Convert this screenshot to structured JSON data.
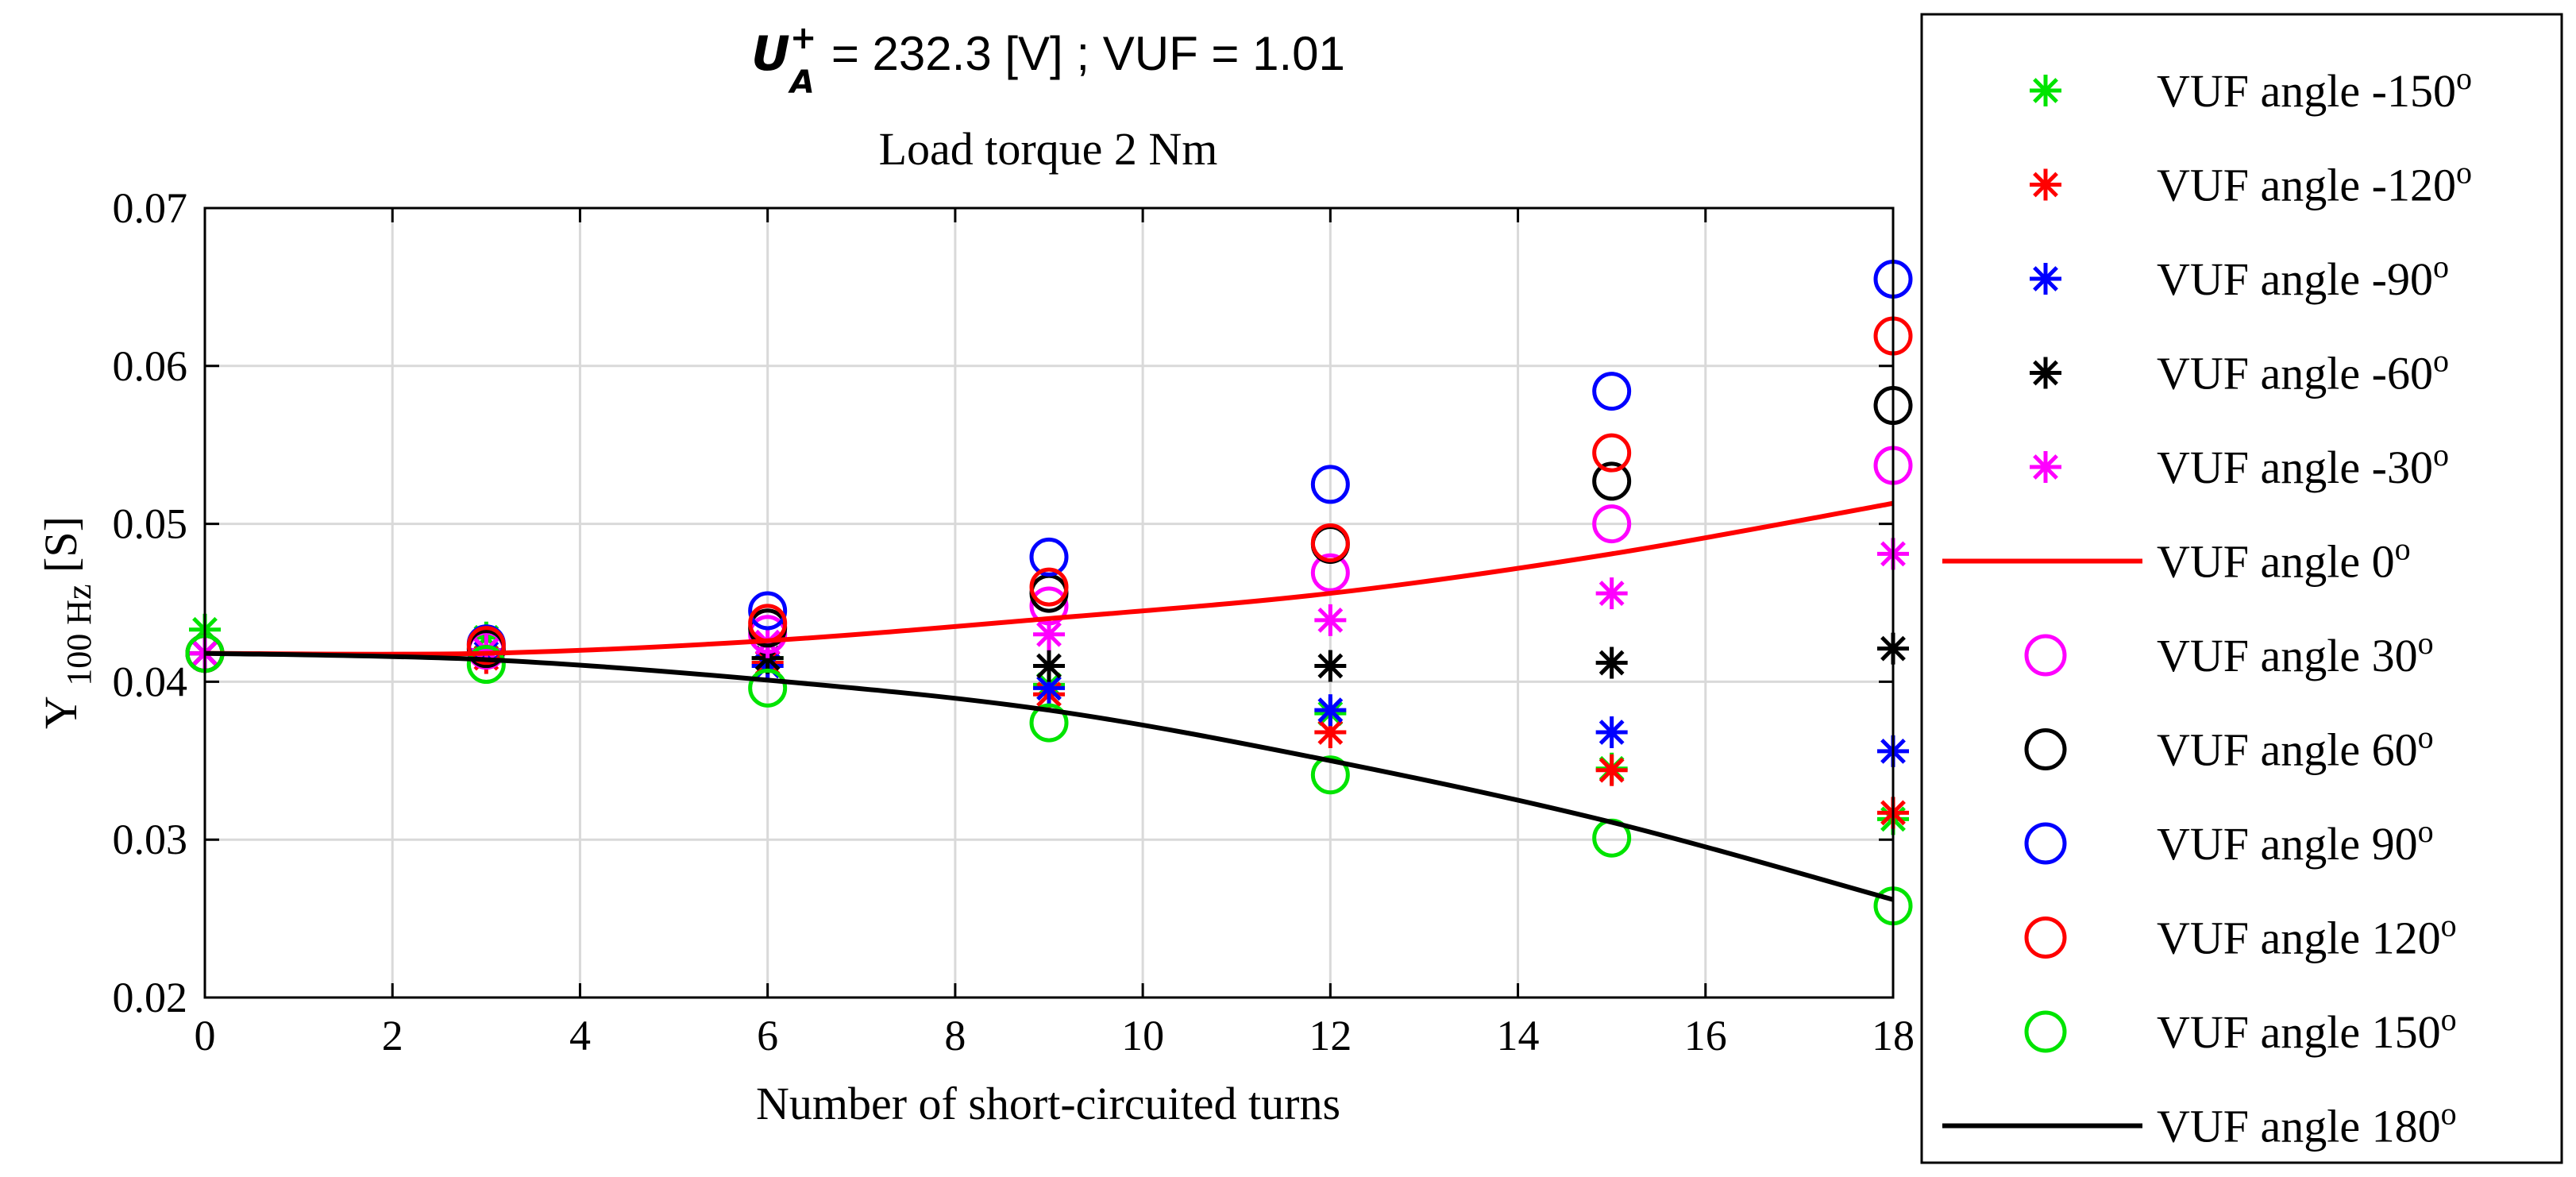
{
  "chart_data": {
    "type": "scatter",
    "title": {
      "symbol": "U",
      "symbol_superscript": "+",
      "symbol_subscript": "A",
      "line1_rest": "= 232.3 [V] ;  VUF = 1.01",
      "line2": "Load torque 2 Nm"
    },
    "xlabel": "Number of short-circuited turns",
    "ylabel": {
      "main": "Y",
      "subscript": "100 Hz",
      "unit": "[S]"
    },
    "xlim": [
      0,
      18
    ],
    "ylim": [
      0.02,
      0.07
    ],
    "xticks": [
      0,
      2,
      4,
      6,
      8,
      10,
      12,
      14,
      16,
      18
    ],
    "yticks": [
      0.02,
      0.03,
      0.04,
      0.05,
      0.06,
      0.07
    ],
    "ytick_labels": [
      "0.02",
      "0.03",
      "0.04",
      "0.05",
      "0.06",
      "0.07"
    ],
    "grid": true,
    "legend_position": "outside-right",
    "x": [
      0,
      3,
      6,
      9,
      12,
      15,
      18
    ],
    "series": [
      {
        "name": "VUF angle -150",
        "label_text": "VUF angle -150",
        "label_sup": "o",
        "marker": "asterisk",
        "color": "#00e400",
        "values": [
          0.0433,
          0.0428,
          0.0415,
          0.0398,
          0.038,
          0.0345,
          0.0313
        ]
      },
      {
        "name": "VUF angle -120",
        "label_text": "VUF angle -120",
        "label_sup": "o",
        "marker": "asterisk",
        "color": "#ff0000",
        "values": [
          0.0418,
          0.0415,
          0.0412,
          0.0392,
          0.0368,
          0.0344,
          0.0317
        ]
      },
      {
        "name": "VUF angle -90",
        "label_text": "VUF angle -90",
        "label_sup": "o",
        "marker": "asterisk",
        "color": "#0000ff",
        "values": [
          0.0418,
          0.0418,
          0.041,
          0.0396,
          0.0382,
          0.0368,
          0.0356
        ]
      },
      {
        "name": "VUF angle -60",
        "label_text": "VUF angle -60",
        "label_sup": "o",
        "marker": "asterisk",
        "color": "#000000",
        "values": [
          0.0418,
          0.042,
          0.0415,
          0.041,
          0.041,
          0.0412,
          0.0421
        ]
      },
      {
        "name": "VUF angle -30",
        "label_text": "VUF angle -30",
        "label_sup": "o",
        "marker": "asterisk",
        "color": "#ff00ff",
        "values": [
          0.0418,
          0.042,
          0.0425,
          0.043,
          0.0439,
          0.0456,
          0.0481
        ]
      },
      {
        "name": "VUF angle 0",
        "label_text": "VUF angle 0",
        "label_sup": "o",
        "marker": "line",
        "color": "#ff0000",
        "values": [
          0.0418,
          0.0418,
          0.0426,
          0.044,
          0.0456,
          0.0481,
          0.0513
        ]
      },
      {
        "name": "VUF angle 30",
        "label_text": "VUF angle 30",
        "label_sup": "o",
        "marker": "circle",
        "color": "#ff00ff",
        "values": [
          0.0418,
          0.042,
          0.043,
          0.0448,
          0.0469,
          0.05,
          0.0537
        ]
      },
      {
        "name": "VUF angle 60",
        "label_text": "VUF angle 60",
        "label_sup": "o",
        "marker": "circle",
        "color": "#000000",
        "values": [
          0.0418,
          0.0421,
          0.0434,
          0.0456,
          0.0487,
          0.0527,
          0.0575
        ]
      },
      {
        "name": "VUF angle 90",
        "label_text": "VUF angle 90",
        "label_sup": "o",
        "marker": "circle",
        "color": "#0000ff",
        "values": [
          0.0418,
          0.0424,
          0.0445,
          0.0479,
          0.0525,
          0.0584,
          0.0655
        ]
      },
      {
        "name": "VUF angle 120",
        "label_text": "VUF angle 120",
        "label_sup": "o",
        "marker": "circle",
        "color": "#ff0000",
        "values": [
          0.0418,
          0.0423,
          0.0437,
          0.046,
          0.0488,
          0.0545,
          0.0619
        ]
      },
      {
        "name": "VUF angle 150",
        "label_text": "VUF angle 150",
        "label_sup": "o",
        "marker": "circle",
        "color": "#00e400",
        "values": [
          0.0418,
          0.0411,
          0.0396,
          0.0374,
          0.0341,
          0.0301,
          0.0258
        ]
      },
      {
        "name": "VUF angle 180",
        "label_text": "VUF angle 180",
        "label_sup": "o",
        "marker": "line",
        "color": "#000000",
        "values": [
          0.0418,
          0.0414,
          0.0401,
          0.0382,
          0.035,
          0.0311,
          0.0262
        ]
      }
    ]
  }
}
